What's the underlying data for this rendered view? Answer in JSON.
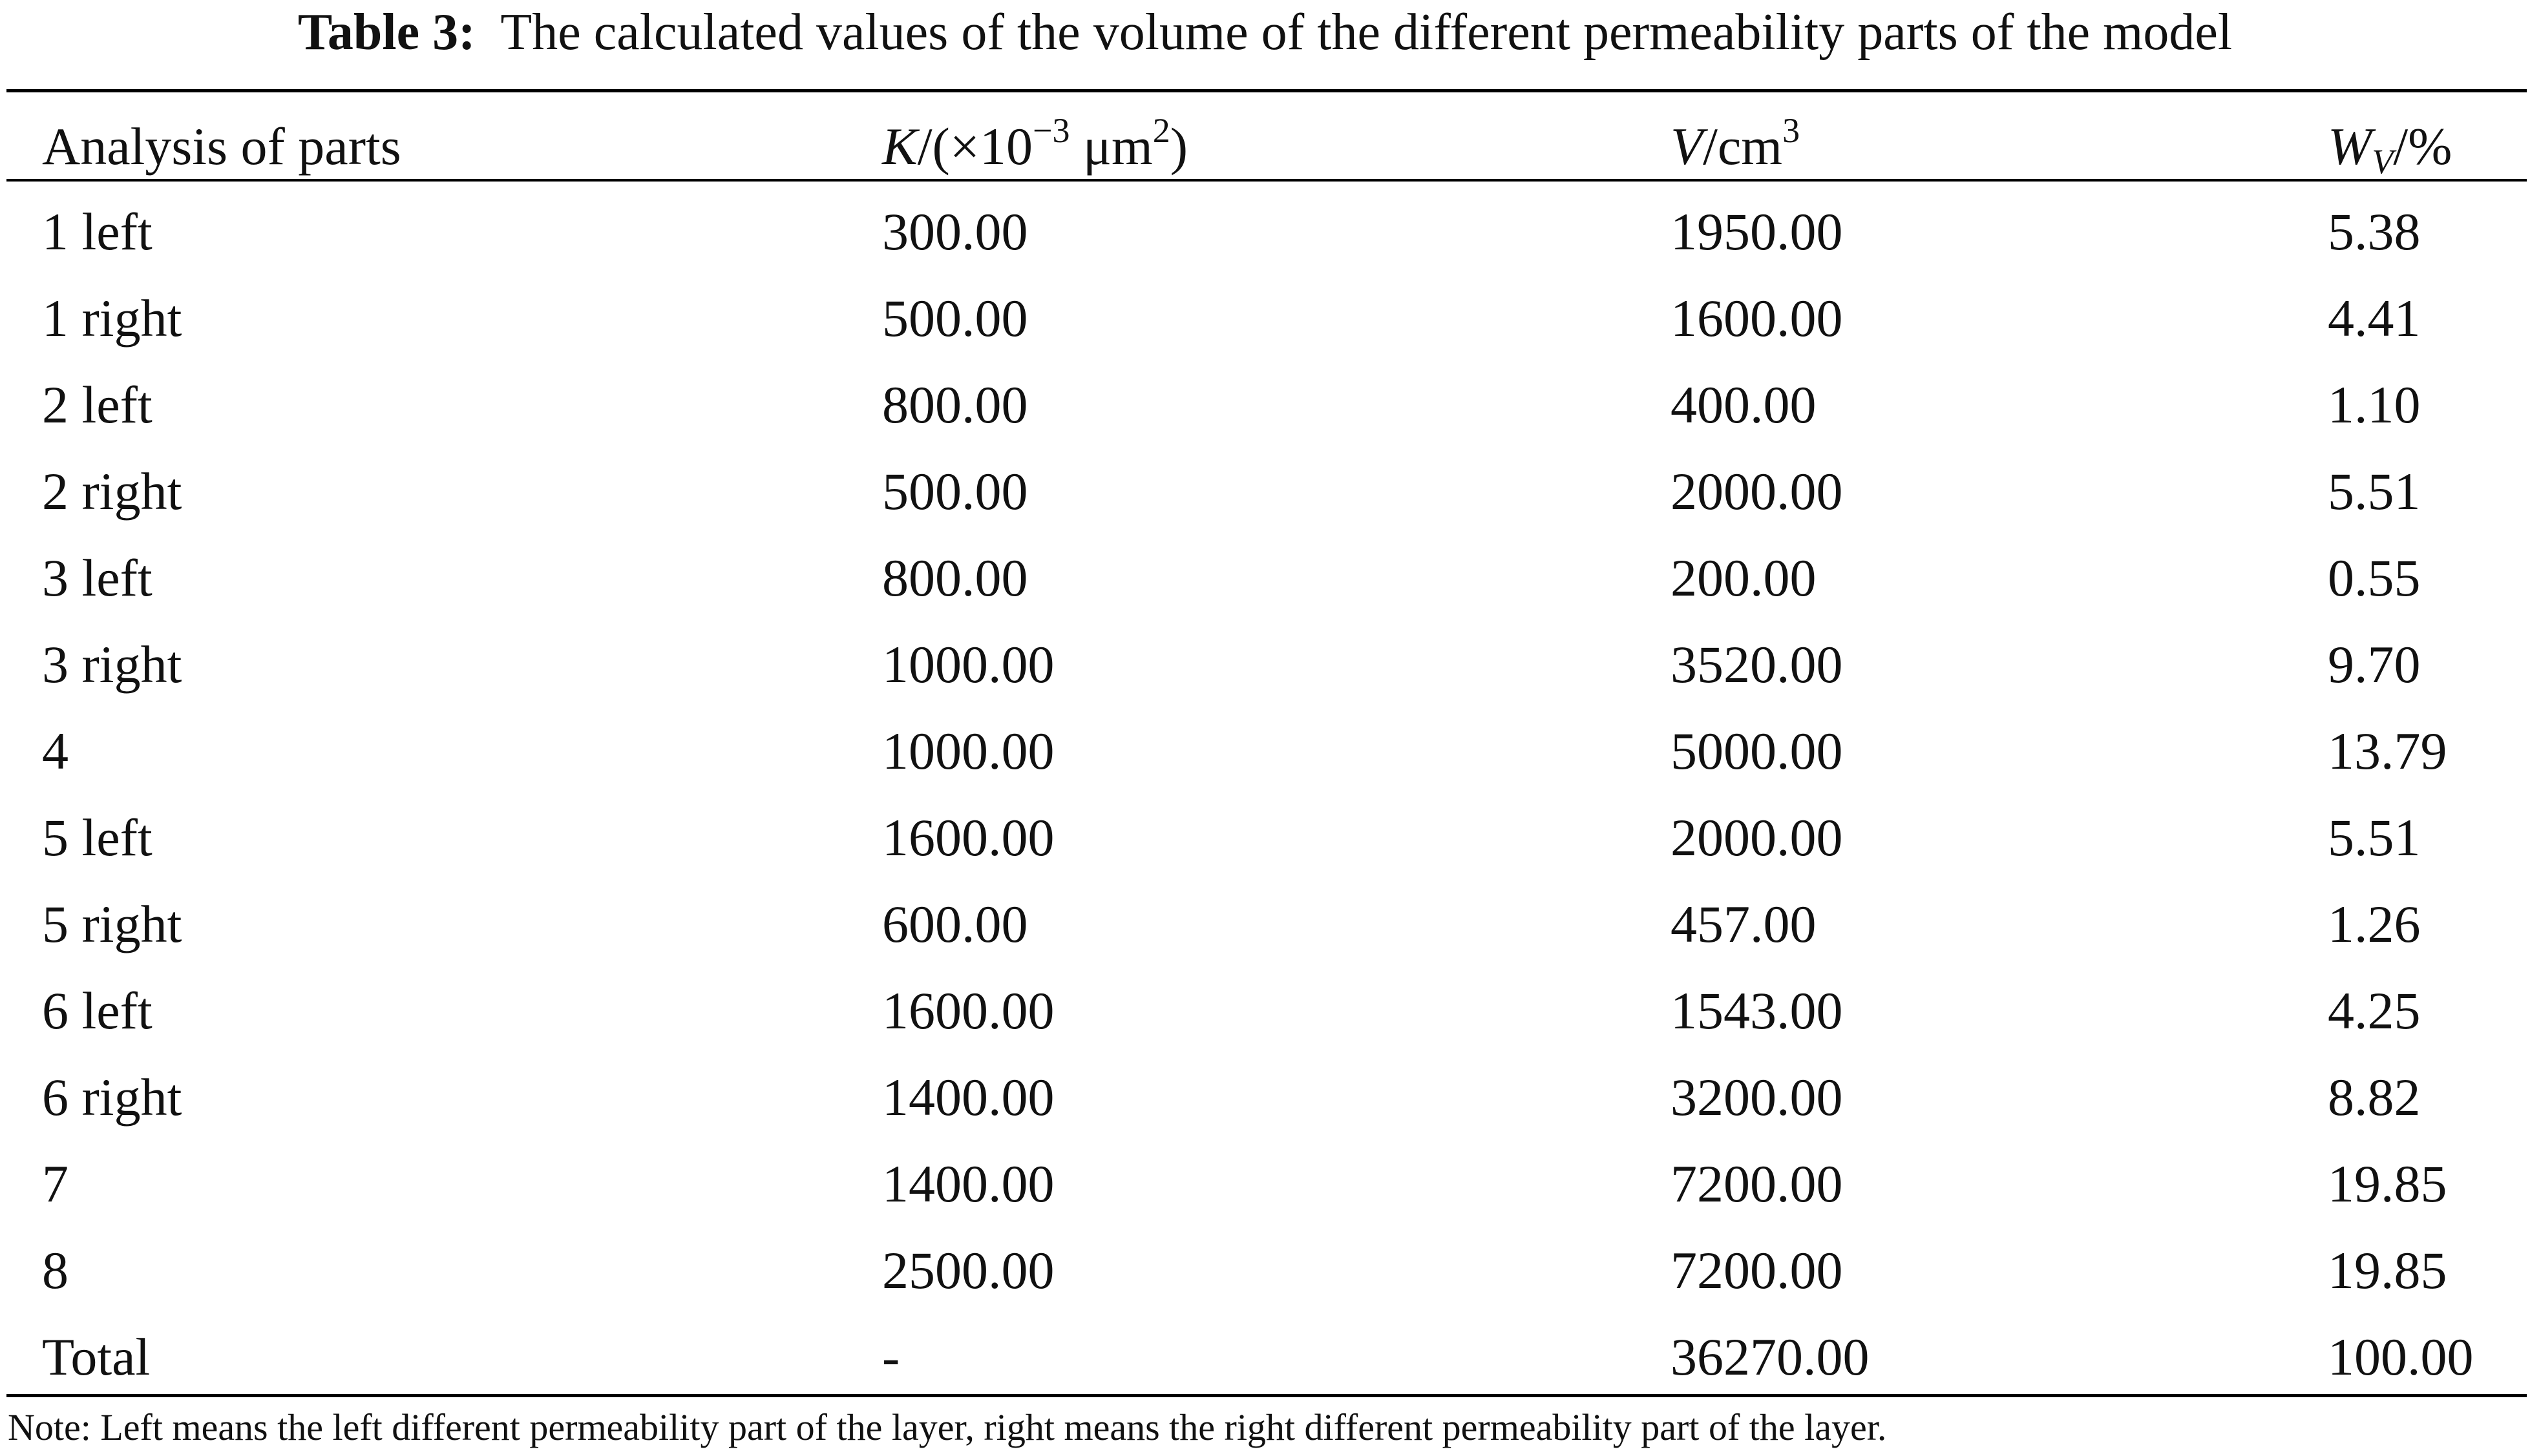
{
  "caption": {
    "label": "Table 3:",
    "text": "The calculated values of the volume of the different permeability parts of the model"
  },
  "table": {
    "headers": {
      "col0": "Analysis of parts",
      "col1": {
        "sym": "K",
        "pre": "/(×10",
        "exp": "−3",
        "unit": " μm",
        "unit_exp": "2",
        "close": ")"
      },
      "col2": {
        "sym": "V",
        "unit": "/cm",
        "exp": "3"
      },
      "col3": {
        "sym": "W",
        "sub": "V",
        "unit": "/%"
      }
    },
    "rows": [
      [
        "1 left",
        "300.00",
        "1950.00",
        "5.38"
      ],
      [
        "1 right",
        "500.00",
        "1600.00",
        "4.41"
      ],
      [
        "2 left",
        "800.00",
        "400.00",
        "1.10"
      ],
      [
        "2 right",
        "500.00",
        "2000.00",
        "5.51"
      ],
      [
        "3 left",
        "800.00",
        "200.00",
        "0.55"
      ],
      [
        "3 right",
        "1000.00",
        "3520.00",
        "9.70"
      ],
      [
        "4",
        "1000.00",
        "5000.00",
        "13.79"
      ],
      [
        "5 left",
        "1600.00",
        "2000.00",
        "5.51"
      ],
      [
        "5 right",
        "600.00",
        "457.00",
        "1.26"
      ],
      [
        "6 left",
        "1600.00",
        "1543.00",
        "4.25"
      ],
      [
        "6 right",
        "1400.00",
        "3200.00",
        "8.82"
      ],
      [
        "7",
        "1400.00",
        "7200.00",
        "19.85"
      ],
      [
        "8",
        "2500.00",
        "7200.00",
        "19.85"
      ],
      [
        "Total",
        "-",
        "36270.00",
        "100.00"
      ]
    ]
  },
  "note": "Note: Left means the left different permeability part of the layer, right means the right different permeability part of the layer."
}
